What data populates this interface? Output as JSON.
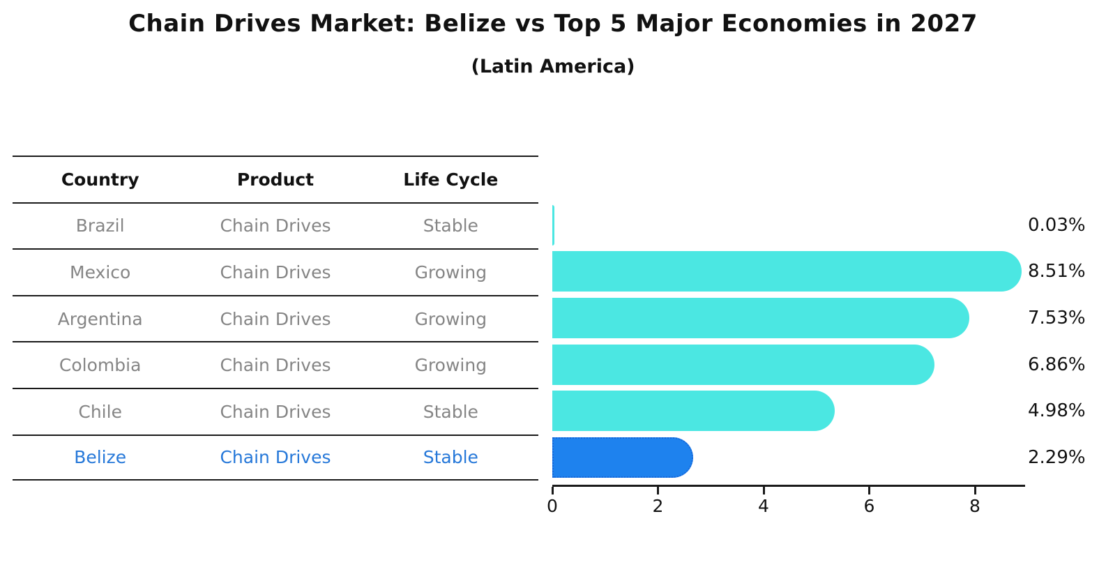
{
  "title": "Chain Drives Market: Belize vs Top 5 Major Economies in 2027",
  "subtitle": "(Latin America)",
  "table": {
    "headers": [
      "Country",
      "Product",
      "Life Cycle"
    ],
    "rows": [
      {
        "country": "Brazil",
        "product": "Chain Drives",
        "life_cycle": "Stable",
        "highlight": false
      },
      {
        "country": "Mexico",
        "product": "Chain Drives",
        "life_cycle": "Growing",
        "highlight": false
      },
      {
        "country": "Argentina",
        "product": "Chain Drives",
        "life_cycle": "Growing",
        "highlight": false
      },
      {
        "country": "Colombia",
        "product": "Chain Drives",
        "life_cycle": "Growing",
        "highlight": false
      },
      {
        "country": "Chile",
        "product": "Chain Drives",
        "life_cycle": "Stable",
        "highlight": false
      },
      {
        "country": "Belize",
        "product": "Chain Drives",
        "life_cycle": "Stable",
        "highlight": true
      }
    ]
  },
  "chart_data": {
    "type": "bar",
    "orientation": "horizontal",
    "title": "Chain Drives Market: Belize vs Top 5 Major Economies in 2027 (Latin America)",
    "categories": [
      "Brazil",
      "Mexico",
      "Argentina",
      "Colombia",
      "Chile",
      "Belize"
    ],
    "values": [
      0.03,
      8.51,
      7.53,
      6.86,
      4.98,
      2.29
    ],
    "value_labels": [
      "0.03%",
      "8.51%",
      "7.53%",
      "6.86%",
      "4.98%",
      "2.29%"
    ],
    "x_ticks": [
      0,
      2,
      4,
      6,
      8
    ],
    "xlim": [
      0,
      8.95
    ],
    "xlabel": "",
    "ylabel": "",
    "grid": false,
    "legend": false,
    "highlight_index": 5,
    "bar_color": "#4be7e2",
    "highlight_bar_color": "#1e82ee",
    "highlight_bar_border_color": "#1565d8"
  },
  "colors": {
    "row_text": "#858585",
    "highlight_text": "#2678d9",
    "line": "#1a1a1a",
    "label_text": "#111111"
  }
}
